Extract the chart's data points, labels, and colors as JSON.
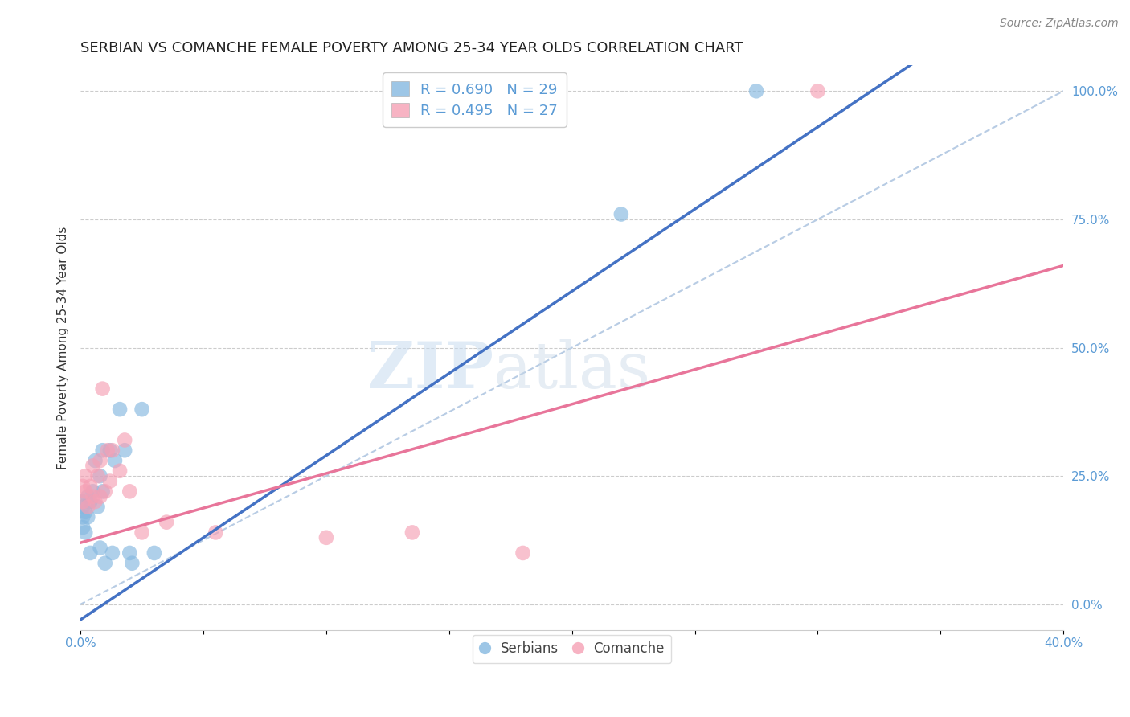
{
  "title": "SERBIAN VS COMANCHE FEMALE POVERTY AMONG 25-34 YEAR OLDS CORRELATION CHART",
  "source": "Source: ZipAtlas.com",
  "ylabel": "Female Poverty Among 25-34 Year Olds",
  "xlim": [
    0.0,
    0.4
  ],
  "ylim": [
    -0.05,
    1.05
  ],
  "xticks": [
    0.0,
    0.05,
    0.1,
    0.15,
    0.2,
    0.25,
    0.3,
    0.35,
    0.4
  ],
  "xticklabels": [
    "0.0%",
    "",
    "",
    "",
    "",
    "",
    "",
    "",
    "40.0%"
  ],
  "yticks_right": [
    0.0,
    0.25,
    0.5,
    0.75,
    1.0
  ],
  "ytick_right_labels": [
    "0.0%",
    "25.0%",
    "50.0%",
    "75.0%",
    "100.0%"
  ],
  "serbian_color": "#85B8E0",
  "comanche_color": "#F5A0B5",
  "serbian_line_color": "#4472C4",
  "comanche_line_color": "#E8759A",
  "identity_line_color": "#B8CCE4",
  "legend_R_serbian": "R = 0.690",
  "legend_N_serbian": "N = 29",
  "legend_R_comanche": "R = 0.495",
  "legend_N_comanche": "N = 27",
  "watermark_zip": "ZIP",
  "watermark_atlas": "atlas",
  "serbian_x": [
    0.001,
    0.001,
    0.001,
    0.001,
    0.002,
    0.002,
    0.003,
    0.003,
    0.004,
    0.004,
    0.005,
    0.006,
    0.007,
    0.008,
    0.008,
    0.009,
    0.009,
    0.01,
    0.012,
    0.013,
    0.014,
    0.016,
    0.018,
    0.02,
    0.021,
    0.025,
    0.03,
    0.22,
    0.275
  ],
  "serbian_y": [
    0.15,
    0.17,
    0.19,
    0.2,
    0.14,
    0.18,
    0.17,
    0.21,
    0.1,
    0.2,
    0.22,
    0.28,
    0.19,
    0.11,
    0.25,
    0.22,
    0.3,
    0.08,
    0.3,
    0.1,
    0.28,
    0.38,
    0.3,
    0.1,
    0.08,
    0.38,
    0.1,
    0.76,
    1.0
  ],
  "comanche_x": [
    0.001,
    0.001,
    0.002,
    0.002,
    0.003,
    0.004,
    0.005,
    0.005,
    0.006,
    0.007,
    0.008,
    0.008,
    0.009,
    0.01,
    0.011,
    0.012,
    0.013,
    0.016,
    0.018,
    0.02,
    0.025,
    0.035,
    0.055,
    0.1,
    0.135,
    0.18,
    0.3
  ],
  "comanche_y": [
    0.2,
    0.23,
    0.22,
    0.25,
    0.19,
    0.23,
    0.21,
    0.27,
    0.2,
    0.25,
    0.21,
    0.28,
    0.42,
    0.22,
    0.3,
    0.24,
    0.3,
    0.26,
    0.32,
    0.22,
    0.14,
    0.16,
    0.14,
    0.13,
    0.14,
    0.1,
    1.0
  ],
  "serbian_reg": {
    "slope": 3.2,
    "intercept": -0.03
  },
  "comanche_reg": {
    "slope": 1.35,
    "intercept": 0.12
  },
  "grid_color": "#CCCCCC",
  "bg_color": "#FFFFFF",
  "title_fontsize": 13,
  "axis_label_fontsize": 11,
  "tick_fontsize": 11,
  "legend_fontsize": 13,
  "tick_color": "#5B9BD5"
}
